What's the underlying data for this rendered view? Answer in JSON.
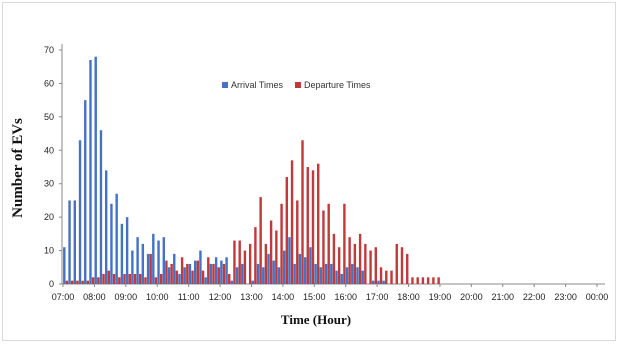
{
  "chart_data": {
    "type": "bar",
    "xlabel": "Time (Hour)",
    "ylabel": "Number of EVs",
    "ylim": [
      0,
      70
    ],
    "yticks": [
      0,
      10,
      20,
      30,
      40,
      50,
      60,
      70
    ],
    "grid": false,
    "legend_position": "top-center",
    "x_tick_labels": [
      "07:00",
      "08:00",
      "09:00",
      "10:00",
      "11:00",
      "12:00",
      "13:00",
      "14:00",
      "15:00",
      "16:00",
      "17:00",
      "18:00",
      "19:00",
      "20:00",
      "21:00",
      "22:00",
      "23:00",
      "00:00"
    ],
    "bins_per_hour": 6,
    "series": [
      {
        "name": "Arrival Times",
        "color": "#4472c4",
        "values": [
          11,
          25,
          25,
          43,
          55,
          67,
          68,
          46,
          34,
          24,
          27,
          18,
          20,
          10,
          14,
          12,
          9,
          15,
          13,
          14,
          5,
          9,
          3,
          5,
          6,
          7,
          10,
          2,
          6,
          8,
          7,
          8,
          1,
          5,
          6,
          0,
          1,
          6,
          5,
          9,
          7,
          5,
          10,
          14,
          6,
          9,
          8,
          11,
          6,
          5,
          6,
          6,
          4,
          3,
          5,
          6,
          5,
          4,
          0,
          1,
          1,
          1,
          0,
          0,
          0,
          0,
          0,
          0,
          0,
          0,
          0,
          0
        ],
        "offset": 0
      },
      {
        "name": "Departure Times",
        "color": "#c0393b",
        "values": [
          1,
          1,
          1,
          1,
          1,
          2,
          2,
          3,
          4,
          3,
          2,
          3,
          3,
          3,
          3,
          2,
          9,
          2,
          3,
          7,
          6,
          4,
          8,
          6,
          4,
          7,
          4,
          8,
          6,
          5,
          6,
          3,
          13,
          13,
          10,
          12,
          17,
          26,
          12,
          19,
          16,
          24,
          32,
          37,
          25,
          43,
          35,
          34,
          36,
          22,
          24,
          15,
          11,
          24,
          14,
          12,
          15,
          12,
          10,
          11,
          5,
          4,
          4,
          12,
          11,
          9,
          2,
          2,
          2,
          2,
          2,
          2
        ],
        "offset": 0.5
      }
    ]
  }
}
